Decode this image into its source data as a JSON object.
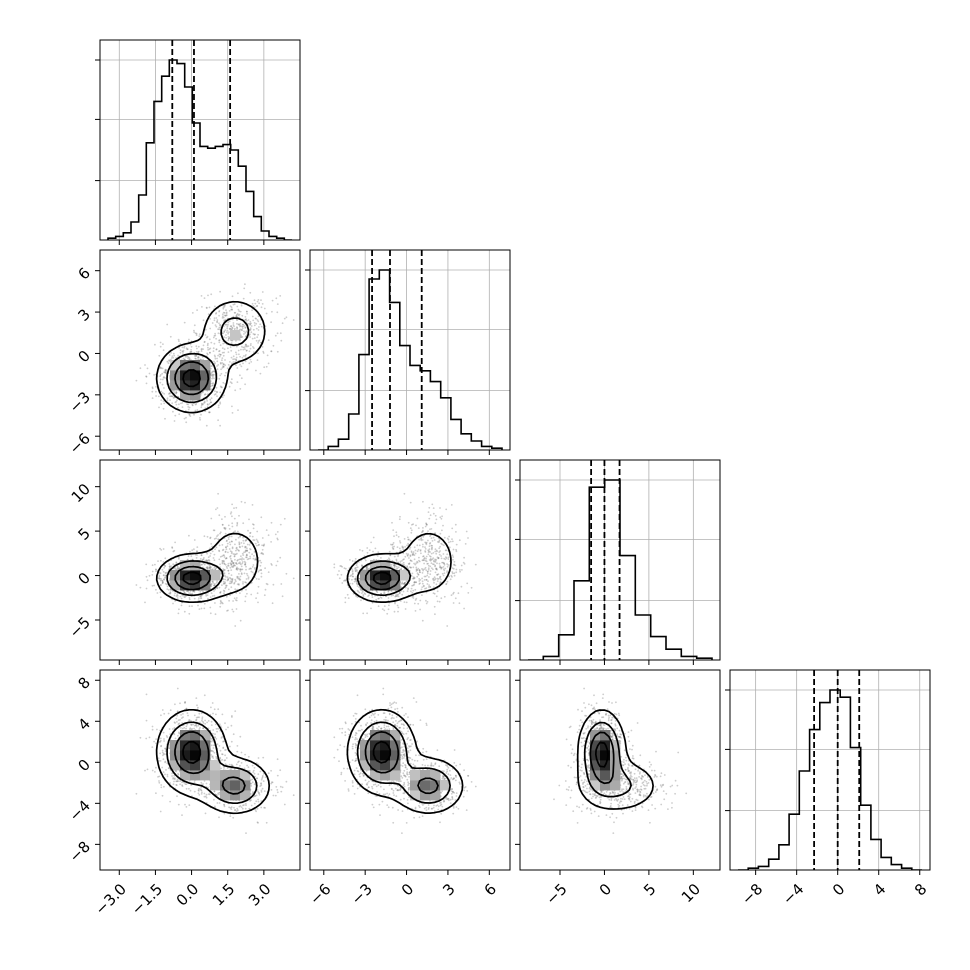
{
  "chart_data": {
    "type": "corner",
    "title": "",
    "grid": true,
    "ndim": 4,
    "axes": [
      {
        "label": "",
        "range": [
          -3.8,
          4.5
        ],
        "ticks": [
          -3.0,
          -1.5,
          0.0,
          1.5,
          3.0
        ],
        "tick_labels": [
          "−3.0",
          "−1.5",
          "0.0",
          "1.5",
          "3.0"
        ]
      },
      {
        "label": "",
        "range": [
          -7,
          7.5
        ],
        "ticks": [
          -6,
          -3,
          0,
          3,
          6
        ],
        "tick_labels": [
          "−6",
          "−3",
          "0",
          "3",
          "6"
        ]
      },
      {
        "label": "",
        "range": [
          -9.5,
          13
        ],
        "ticks": [
          -5,
          0,
          5,
          10
        ],
        "tick_labels": [
          "−5",
          "0",
          "5",
          "10"
        ]
      },
      {
        "label": "",
        "range": [
          -10.5,
          9
        ],
        "ticks": [
          -8,
          -4,
          0,
          4,
          8
        ],
        "tick_labels": [
          "−8",
          "−4",
          "0",
          "4",
          "8"
        ]
      }
    ],
    "quantile_lines": [
      [
        -0.8,
        0.1,
        1.6
      ],
      [
        -2.5,
        -1.2,
        1.1
      ],
      [
        -1.5,
        0.0,
        1.7
      ],
      [
        -2.3,
        0.0,
        2.1
      ]
    ],
    "histograms": [
      {
        "ylim": [
          0,
          1.0
        ],
        "grid_y": [
          0.33,
          0.67,
          1.0
        ],
        "values": [
          0.01,
          0.02,
          0.04,
          0.1,
          0.25,
          0.54,
          0.77,
          0.91,
          1.0,
          0.98,
          0.85,
          0.65,
          0.52,
          0.51,
          0.52,
          0.53,
          0.5,
          0.41,
          0.27,
          0.13,
          0.05,
          0.02,
          0.01,
          0.0
        ]
      },
      {
        "ylim": [
          0,
          1.0
        ],
        "grid_y": [
          0.33,
          0.67,
          1.0
        ],
        "values": [
          0.0,
          0.02,
          0.06,
          0.2,
          0.53,
          0.95,
          1.0,
          0.82,
          0.58,
          0.47,
          0.44,
          0.38,
          0.29,
          0.17,
          0.09,
          0.05,
          0.02,
          0.01
        ]
      },
      {
        "ylim": [
          0,
          1.0
        ],
        "grid_y": [
          0.33,
          0.67,
          1.0
        ],
        "values": [
          0.0,
          0.02,
          0.14,
          0.44,
          0.96,
          1.0,
          0.58,
          0.25,
          0.13,
          0.06,
          0.02,
          0.01
        ]
      },
      {
        "ylim": [
          0,
          1.0
        ],
        "grid_y": [
          0.33,
          0.67,
          1.0
        ],
        "values": [
          0.0,
          0.01,
          0.02,
          0.06,
          0.14,
          0.31,
          0.55,
          0.78,
          0.93,
          1.0,
          0.96,
          0.68,
          0.36,
          0.17,
          0.07,
          0.03,
          0.01,
          0.0
        ]
      }
    ],
    "point_colour": "#6f6f6f",
    "line_colour": "#000000",
    "mixture": {
      "weights": [
        0.65,
        0.35
      ],
      "means": [
        [
          0.0,
          -1.8,
          -0.3,
          1.0
        ],
        [
          1.8,
          1.6,
          1.6,
          -2.3
        ]
      ],
      "sigmas": [
        [
          0.7,
          1.2,
          1.3,
          2.0
        ],
        [
          0.75,
          1.3,
          2.5,
          1.4
        ]
      ]
    }
  }
}
